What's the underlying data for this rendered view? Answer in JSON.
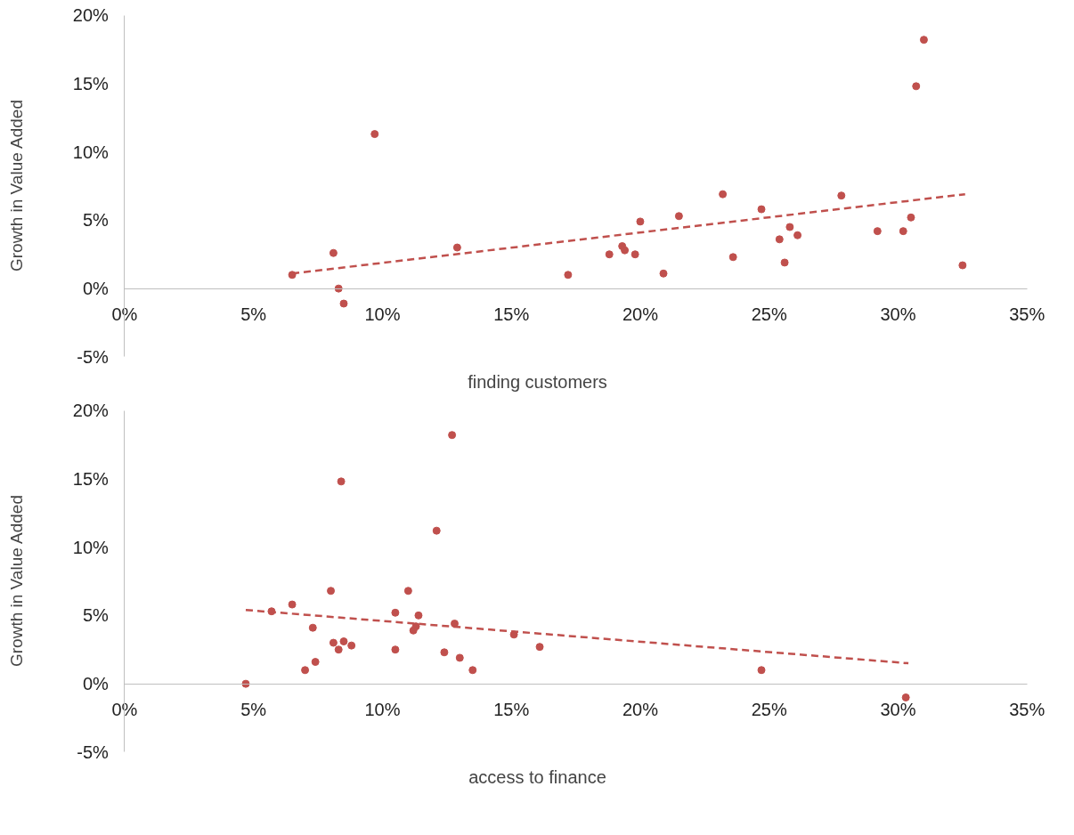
{
  "chart_data": [
    {
      "type": "scatter",
      "xlabel": "finding customers",
      "ylabel": "Growth in Value Added",
      "grid": false,
      "xlim": [
        0,
        35
      ],
      "ylim": [
        -5,
        20
      ],
      "xticks": [
        {
          "value": 0,
          "label": "0%"
        },
        {
          "value": 5,
          "label": "5%"
        },
        {
          "value": 10,
          "label": "10%"
        },
        {
          "value": 15,
          "label": "15%"
        },
        {
          "value": 20,
          "label": "20%"
        },
        {
          "value": 25,
          "label": "25%"
        },
        {
          "value": 30,
          "label": "30%"
        },
        {
          "value": 35,
          "label": "35%"
        }
      ],
      "yticks": [
        {
          "value": -5,
          "label": "-5%"
        },
        {
          "value": 0,
          "label": "0%"
        },
        {
          "value": 5,
          "label": "5%"
        },
        {
          "value": 10,
          "label": "10%"
        },
        {
          "value": 15,
          "label": "15%"
        },
        {
          "value": 20,
          "label": "20%"
        }
      ],
      "series": [
        {
          "type": "scatter",
          "marker": "circle",
          "color": "#c0504d",
          "x": [
            6.5,
            8.1,
            8.3,
            8.5,
            9.7,
            12.9,
            17.2,
            18.8,
            19.3,
            19.4,
            19.8,
            20.0,
            20.9,
            21.5,
            23.2,
            23.6,
            24.7,
            25.4,
            25.6,
            25.8,
            26.1,
            27.8,
            29.2,
            30.2,
            30.5,
            30.7,
            31.0,
            32.5
          ],
          "values": [
            1.0,
            2.6,
            0.0,
            -1.1,
            11.3,
            3.0,
            1.0,
            2.5,
            3.1,
            2.8,
            2.5,
            4.9,
            1.1,
            5.3,
            6.9,
            2.3,
            5.8,
            3.6,
            1.9,
            4.5,
            3.9,
            6.8,
            4.2,
            4.2,
            5.2,
            14.8,
            18.2,
            1.7
          ]
        },
        {
          "type": "line",
          "line_style": "dashed",
          "color": "#c0504d",
          "x": [
            6.5,
            32.6
          ],
          "values": [
            1.1,
            6.9
          ]
        }
      ]
    },
    {
      "type": "scatter",
      "xlabel": "access to finance",
      "ylabel": "Growth in Value Added",
      "grid": false,
      "xlim": [
        0,
        35
      ],
      "ylim": [
        -5,
        20
      ],
      "xticks": [
        {
          "value": 0,
          "label": "0%"
        },
        {
          "value": 5,
          "label": "5%"
        },
        {
          "value": 10,
          "label": "10%"
        },
        {
          "value": 15,
          "label": "15%"
        },
        {
          "value": 20,
          "label": "20%"
        },
        {
          "value": 25,
          "label": "25%"
        },
        {
          "value": 30,
          "label": "30%"
        },
        {
          "value": 35,
          "label": "35%"
        }
      ],
      "yticks": [
        {
          "value": -5,
          "label": "-5%"
        },
        {
          "value": 0,
          "label": "0%"
        },
        {
          "value": 5,
          "label": "5%"
        },
        {
          "value": 10,
          "label": "10%"
        },
        {
          "value": 15,
          "label": "15%"
        },
        {
          "value": 20,
          "label": "20%"
        }
      ],
      "series": [
        {
          "type": "scatter",
          "marker": "circle",
          "color": "#c0504d",
          "x": [
            12.7,
            8.4,
            12.1,
            8.0,
            11.0,
            6.5,
            5.7,
            10.5,
            11.4,
            12.8,
            11.3,
            11.2,
            7.3,
            15.1,
            8.1,
            8.5,
            8.8,
            8.3,
            10.5,
            16.1,
            12.4,
            13.0,
            7.4,
            7.0,
            13.5,
            4.7,
            24.7,
            30.3
          ],
          "values": [
            18.2,
            14.8,
            11.2,
            6.8,
            6.8,
            5.8,
            5.3,
            5.2,
            5.0,
            4.4,
            4.2,
            3.9,
            4.1,
            3.6,
            3.0,
            3.1,
            2.8,
            2.5,
            2.5,
            2.7,
            2.3,
            1.9,
            1.6,
            1.0,
            1.0,
            0.0,
            1.0,
            -1.0
          ]
        },
        {
          "type": "line",
          "line_style": "dashed",
          "color": "#c0504d",
          "x": [
            4.7,
            30.4
          ],
          "values": [
            5.4,
            1.5
          ]
        }
      ]
    }
  ]
}
